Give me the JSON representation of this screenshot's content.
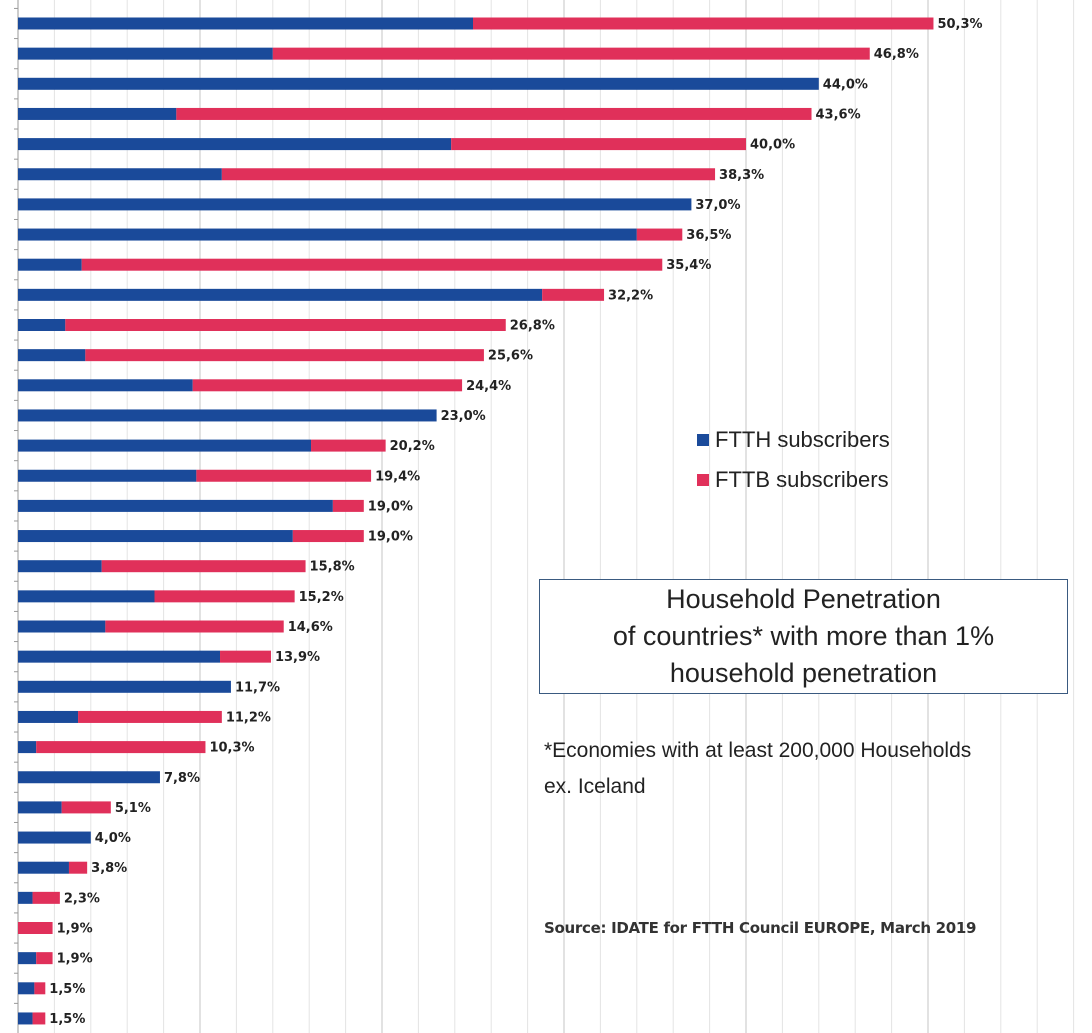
{
  "chart_data": {
    "type": "bar",
    "orientation": "horizontal",
    "stacked": true,
    "xlim": [
      0,
      60
    ],
    "grid": true,
    "legend_position": "right",
    "series": [
      {
        "name": "FTTH subscribers",
        "color": "#1a4a9a",
        "values": [
          25.0,
          14.0,
          44.0,
          8.7,
          23.8,
          11.2,
          37.0,
          34.0,
          3.5,
          28.8,
          2.6,
          3.7,
          9.6,
          23.0,
          16.1,
          9.8,
          17.3,
          15.1,
          4.6,
          7.5,
          4.8,
          11.1,
          11.7,
          3.3,
          1.0,
          7.8,
          2.4,
          4.0,
          2.8,
          0.8,
          0.0,
          1.0,
          0.9,
          0.8
        ]
      },
      {
        "name": "FTTB subscribers",
        "color": "#e0305a",
        "values": [
          25.3,
          32.8,
          0.0,
          34.9,
          16.2,
          27.1,
          0.0,
          2.5,
          31.9,
          3.4,
          24.2,
          21.9,
          14.8,
          0.0,
          4.1,
          9.6,
          1.7,
          3.9,
          11.2,
          7.7,
          9.8,
          2.8,
          0.0,
          7.9,
          9.3,
          0.0,
          2.7,
          0.0,
          1.0,
          1.5,
          1.9,
          0.9,
          0.6,
          0.7
        ]
      }
    ],
    "totals": [
      "50,3%",
      "46,8%",
      "44,0%",
      "43,6%",
      "40,0%",
      "38,3%",
      "37,0%",
      "36,5%",
      "35,4%",
      "32,2%",
      "26,8%",
      "25,6%",
      "24,4%",
      "23,0%",
      "20,2%",
      "19,4%",
      "19,0%",
      "19,0%",
      "15,8%",
      "15,2%",
      "14,6%",
      "13,9%",
      "11,7%",
      "11,2%",
      "10,3%",
      "7,8%",
      "5,1%",
      "4,0%",
      "3,8%",
      "2,3%",
      "1,9%",
      "1,9%",
      "1,5%",
      "1,5%"
    ]
  },
  "legend": {
    "ftth_label": "FTTH subscribers",
    "fttb_label": "FTTB subscribers"
  },
  "title_box": {
    "line1": "Household Penetration",
    "line2": "of countries* with more than 1%",
    "line3": "household penetration"
  },
  "note": {
    "line1": "*Economies with at least 200,000 Households",
    "line2": "ex. Iceland"
  },
  "source": "Source: IDATE for FTTH Council EUROPE, March 2019"
}
